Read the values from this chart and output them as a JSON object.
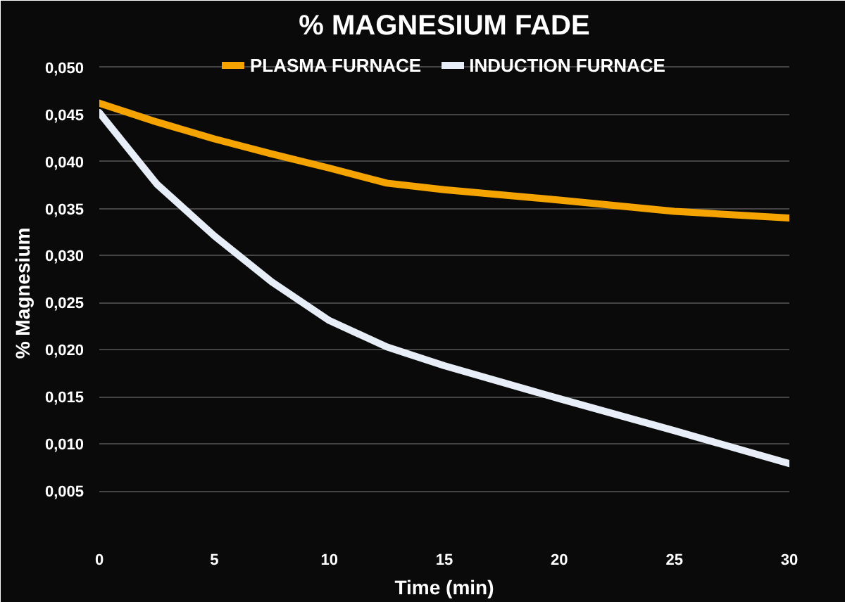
{
  "chart_data": {
    "type": "line",
    "title": "% MAGNESIUM FADE",
    "xlabel": "Time (min)",
    "ylabel": "% Magnesium",
    "x": [
      0,
      2.5,
      5,
      7.5,
      10,
      12.5,
      15,
      20,
      25,
      30
    ],
    "series": [
      {
        "name": "PLASMA FURNACE",
        "color": "#f5a300",
        "values": [
          0.0462,
          0.0442,
          0.0424,
          0.0408,
          0.0393,
          0.0377,
          0.037,
          0.0359,
          0.0347,
          0.034
        ]
      },
      {
        "name": "INDUCTION FURNACE",
        "color": "#e8eef8",
        "values": [
          0.0452,
          0.0376,
          0.0321,
          0.0272,
          0.0231,
          0.0203,
          0.0183,
          0.0148,
          0.0114,
          0.0079
        ]
      }
    ],
    "xlim": [
      0,
      30
    ],
    "ylim": [
      0,
      0.052
    ],
    "xticks": [
      0,
      5,
      10,
      15,
      20,
      25,
      30
    ],
    "yticks": [
      {
        "value": 0.005,
        "label": "0,005"
      },
      {
        "value": 0.01,
        "label": "0,010"
      },
      {
        "value": 0.015,
        "label": "0,015"
      },
      {
        "value": 0.02,
        "label": "0,020"
      },
      {
        "value": 0.025,
        "label": "0,025"
      },
      {
        "value": 0.03,
        "label": "0,030"
      },
      {
        "value": 0.035,
        "label": "0,035"
      },
      {
        "value": 0.04,
        "label": "0,040"
      },
      {
        "value": 0.045,
        "label": "0,045"
      },
      {
        "value": 0.05,
        "label": "0,050"
      }
    ],
    "grid": "y",
    "legend": "top",
    "marker": "none",
    "line_style": "solid"
  }
}
